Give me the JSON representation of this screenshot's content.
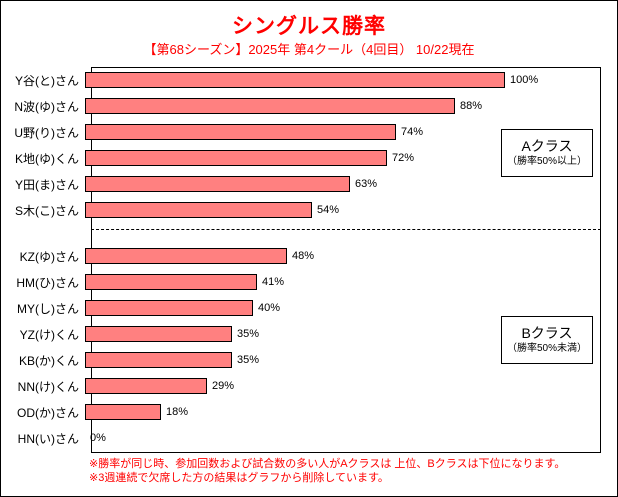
{
  "title": "シングルス勝率",
  "subtitle": "【第68シーズン】2025年 第4クール（4回目） 10/22現在",
  "colors": {
    "title_text": "#ff0000",
    "subtitle_text": "#ff0000",
    "footnote_text": "#ff0000",
    "bar_fill": "#ff8080",
    "bar_border": "#000000",
    "axis_and_labels": "#000000",
    "background": "#ffffff"
  },
  "chart_data": {
    "type": "bar",
    "orientation": "horizontal",
    "title": "シングルス勝率",
    "subtitle": "【第68シーズン】2025年 第4クール（4回目） 10/22現在",
    "value_unit": "%",
    "xlim": [
      0,
      100
    ],
    "grid": false,
    "data_labels": "outside-end",
    "groups": [
      {
        "group_label": "Aクラス",
        "group_note": "（勝率50%以上）",
        "categories": [
          "Y谷(と)さん",
          "N波(ゆ)さん",
          "U野(り)さん",
          "K地(ゆ)くん",
          "Y田(ま)さん",
          "S木(こ)さん"
        ],
        "values": [
          100,
          88,
          74,
          72,
          63,
          54
        ],
        "value_labels": [
          "100%",
          "88%",
          "74%",
          "72%",
          "63%",
          "54%"
        ]
      },
      {
        "group_label": "Bクラス",
        "group_note": "（勝率50%未満）",
        "categories": [
          "KZ(ゆ)さん",
          "HM(ひ)さん",
          "MY(し)さん",
          "YZ(け)くん",
          "KB(か)くん",
          "NN(け)くん",
          "OD(か)さん",
          "HN(い)さん"
        ],
        "values": [
          48,
          41,
          40,
          35,
          35,
          29,
          18,
          0
        ],
        "value_labels": [
          "48%",
          "41%",
          "40%",
          "35%",
          "35%",
          "29%",
          "18%",
          "0%"
        ]
      }
    ],
    "separator": "dashed-line-between-groups"
  },
  "annotation_boxes": {
    "class_a": {
      "name": "Aクラス",
      "note": "（勝率50%以上）"
    },
    "class_b": {
      "name": "Bクラス",
      "note": "（勝率50%未満）"
    }
  },
  "footnotes": [
    "※勝率が同じ時、参加回数および試合数の多い人がAクラスは 上位、Bクラスは下位になります。",
    "※3週連続で欠席した方の結果はグラフから削除しています。"
  ]
}
